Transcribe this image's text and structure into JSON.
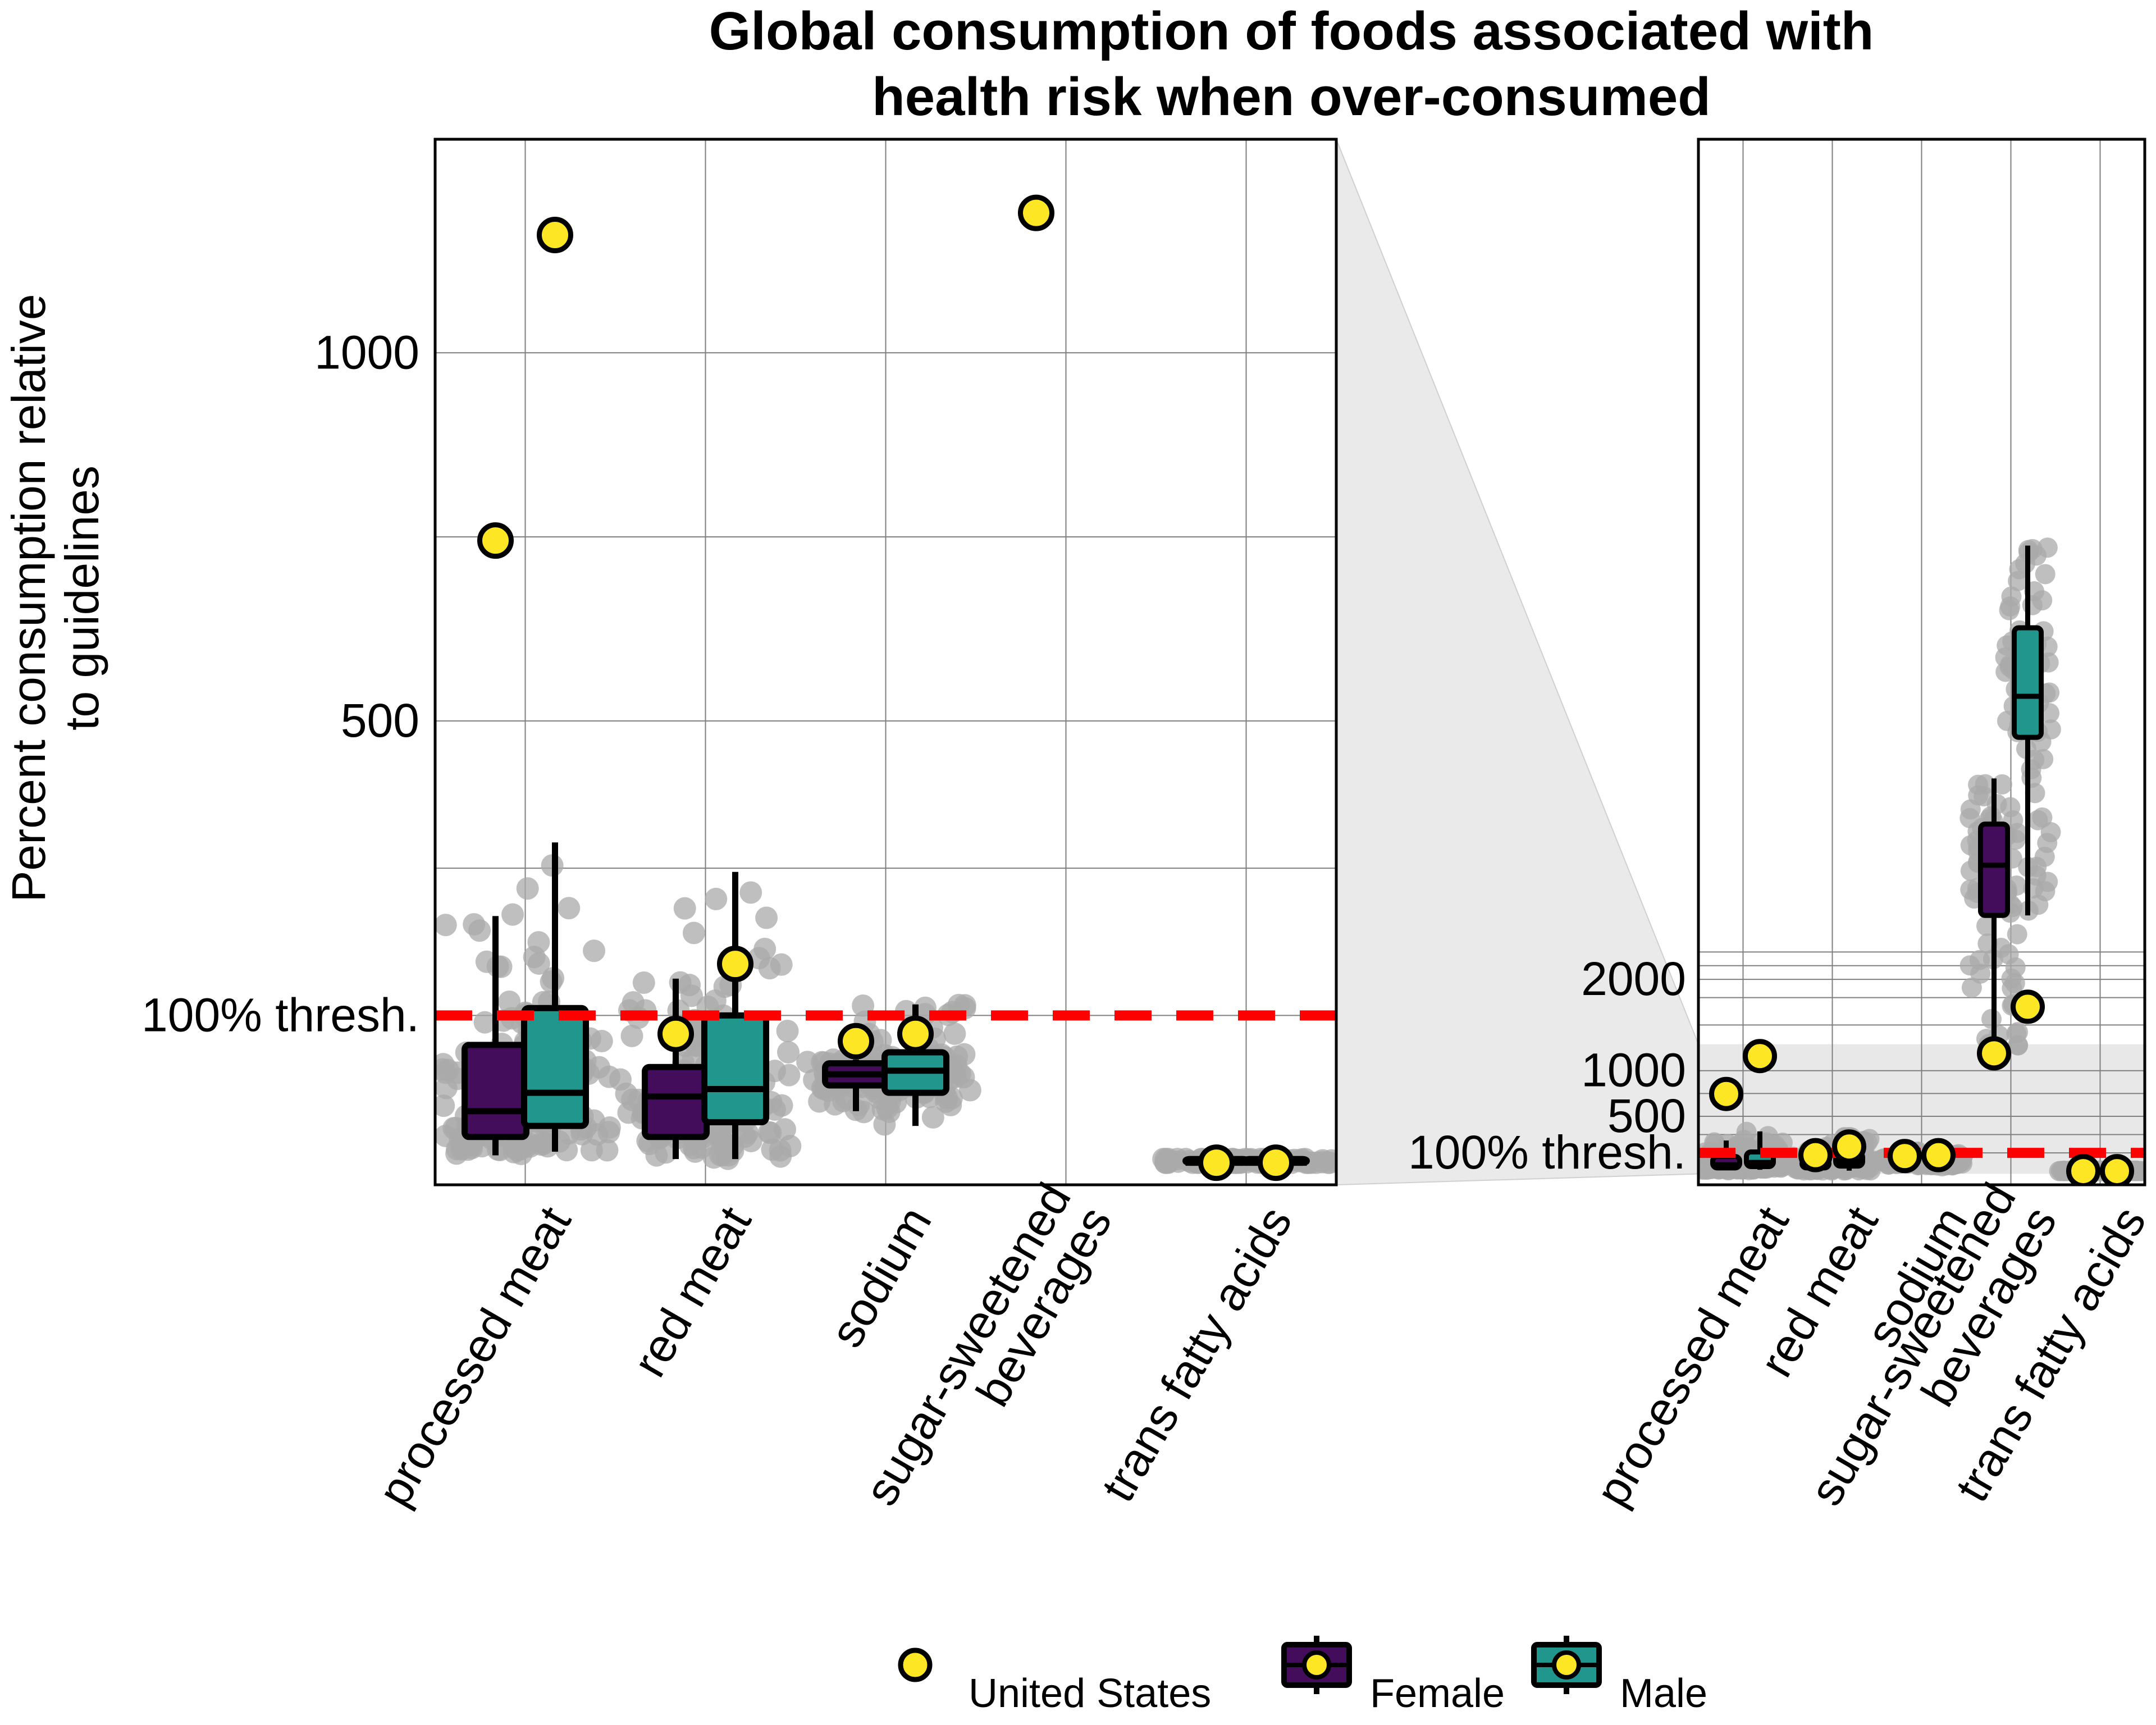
{
  "chart_data": {
    "type": "boxplot",
    "title_line1": "Global consumption of foods associated with",
    "title_line2": "health risk when over-consumed",
    "ylabel_line1": "Percent consumption relative",
    "ylabel_line2": "to guidelines",
    "threshold_label": "100% thresh.",
    "threshold_value": 100,
    "categories": [
      "processed meat",
      "red meat",
      "sodium",
      "sugar-sweetened beverages",
      "trans fatty acids"
    ],
    "category_label_lines": [
      [
        "processed meat"
      ],
      [
        "red meat"
      ],
      [
        "sodium"
      ],
      [
        "sugar-sweetened",
        "beverages"
      ],
      [
        "trans fatty acids"
      ]
    ],
    "panels": [
      {
        "name": "main",
        "ylim": [
          -130,
          1290
        ],
        "yticks": [
          1000,
          500
        ],
        "ygrid": [
          1000,
          750,
          500,
          300,
          100
        ],
        "categories": [
          "processed meat",
          "red meat",
          "sodium",
          "sugar-sweetened beverages",
          "trans fatty acids"
        ],
        "boxes": [
          {
            "category": "processed meat",
            "sex": "Female",
            "whisker_low": -90,
            "q1": -65,
            "median": -30,
            "q3": 60,
            "whisker_high": 235
          },
          {
            "category": "processed meat",
            "sex": "Male",
            "whisker_low": -85,
            "q1": -50,
            "median": -5,
            "q3": 110,
            "whisker_high": 335
          },
          {
            "category": "red meat",
            "sex": "Female",
            "whisker_low": -95,
            "q1": -65,
            "median": -10,
            "q3": 30,
            "whisker_high": 150
          },
          {
            "category": "red meat",
            "sex": "Male",
            "whisker_low": -95,
            "q1": -45,
            "median": 0,
            "q3": 100,
            "whisker_high": 295
          },
          {
            "category": "sodium",
            "sex": "Female",
            "whisker_low": -30,
            "q1": 5,
            "median": 20,
            "q3": 35,
            "whisker_high": 40
          },
          {
            "category": "sodium",
            "sex": "Male",
            "whisker_low": -50,
            "q1": -5,
            "median": 25,
            "q3": 50,
            "whisker_high": 115
          },
          {
            "category": "trans fatty acids",
            "sex": "Female",
            "whisker_low": -100,
            "q1": -100,
            "median": -100,
            "q3": -95,
            "whisker_high": -95
          },
          {
            "category": "trans fatty acids",
            "sex": "Male",
            "whisker_low": -100,
            "q1": -100,
            "median": -100,
            "q3": -95,
            "whisker_high": -95
          }
        ],
        "us_points": [
          {
            "category": "processed meat",
            "sex": "Female",
            "value": 745
          },
          {
            "category": "processed meat",
            "sex": "Male",
            "value": 1160
          },
          {
            "category": "red meat",
            "sex": "Female",
            "value": 75
          },
          {
            "category": "red meat",
            "sex": "Male",
            "value": 170
          },
          {
            "category": "sodium",
            "sex": "Female",
            "value": 65
          },
          {
            "category": "sodium",
            "sex": "Male",
            "value": 75
          },
          {
            "category": "sugar-sweetened beverages",
            "sex": "Female",
            "value": 1190
          },
          {
            "category": "trans fatty acids",
            "sex": "Female",
            "value": -100
          },
          {
            "category": "trans fatty acids",
            "sex": "Male",
            "value": -100
          }
        ]
      },
      {
        "name": "inset",
        "ylim": [
          -250,
          11200
        ],
        "yticks": [
          2000,
          1000,
          500
        ],
        "ygrid": [
          2300,
          2150,
          2000,
          1800,
          1500,
          1000,
          750,
          500,
          300,
          100
        ],
        "zoom_band": [
          -130,
          1290
        ],
        "categories": [
          "processed meat",
          "red meat",
          "sodium",
          "sugar-sweetened beverages",
          "trans fatty acids"
        ],
        "boxes": [
          {
            "category": "processed meat",
            "sex": "Female",
            "whisker_low": -90,
            "q1": -65,
            "median": -30,
            "q3": 60,
            "whisker_high": 235
          },
          {
            "category": "processed meat",
            "sex": "Male",
            "whisker_low": -85,
            "q1": -50,
            "median": -5,
            "q3": 110,
            "whisker_high": 335
          },
          {
            "category": "red meat",
            "sex": "Female",
            "whisker_low": -95,
            "q1": -65,
            "median": -10,
            "q3": 30,
            "whisker_high": 150
          },
          {
            "category": "red meat",
            "sex": "Male",
            "whisker_low": -95,
            "q1": -45,
            "median": 0,
            "q3": 100,
            "whisker_high": 295
          },
          {
            "category": "sodium",
            "sex": "Female",
            "whisker_low": -30,
            "q1": 5,
            "median": 20,
            "q3": 35,
            "whisker_high": 40
          },
          {
            "category": "sodium",
            "sex": "Male",
            "whisker_low": -50,
            "q1": -5,
            "median": 25,
            "q3": 50,
            "whisker_high": 115
          },
          {
            "category": "sugar-sweetened beverages",
            "sex": "Female",
            "whisker_low": 1200,
            "q1": 2700,
            "median": 3250,
            "q3": 3700,
            "whisker_high": 4200
          },
          {
            "category": "sugar-sweetened beverages",
            "sex": "Male",
            "whisker_low": 2700,
            "q1": 4650,
            "median": 5100,
            "q3": 5850,
            "whisker_high": 6750
          },
          {
            "category": "trans fatty acids",
            "sex": "Female",
            "whisker_low": -100,
            "q1": -100,
            "median": -100,
            "q3": -95,
            "whisker_high": -95
          },
          {
            "category": "trans fatty acids",
            "sex": "Male",
            "whisker_low": -100,
            "q1": -100,
            "median": -100,
            "q3": -95,
            "whisker_high": -95
          }
        ],
        "us_points": [
          {
            "category": "processed meat",
            "sex": "Female",
            "value": 745
          },
          {
            "category": "processed meat",
            "sex": "Male",
            "value": 1160
          },
          {
            "category": "red meat",
            "sex": "Female",
            "value": 75
          },
          {
            "category": "red meat",
            "sex": "Male",
            "value": 170
          },
          {
            "category": "sodium",
            "sex": "Female",
            "value": 65
          },
          {
            "category": "sodium",
            "sex": "Male",
            "value": 75
          },
          {
            "category": "sugar-sweetened beverages",
            "sex": "Female",
            "value": 1190
          },
          {
            "category": "sugar-sweetened beverages",
            "sex": "Male",
            "value": 1700
          },
          {
            "category": "trans fatty acids",
            "sex": "Female",
            "value": -100
          },
          {
            "category": "trans fatty acids",
            "sex": "Male",
            "value": -100
          }
        ]
      }
    ],
    "legend": {
      "placement": "bottom",
      "entries": [
        {
          "label": "United States",
          "kind": "us-point"
        },
        {
          "label": "Female",
          "kind": "box",
          "color": "#440D5C"
        },
        {
          "label": "Male",
          "kind": "box",
          "color": "#21968C"
        }
      ]
    },
    "colors": {
      "female": "#440D5C",
      "male": "#21968C",
      "us_point": "#FDE725",
      "threshold": "#FF0000",
      "country_points": "#A9A9A9",
      "zoom_band": "#D9D9D9"
    },
    "grid": true
  }
}
